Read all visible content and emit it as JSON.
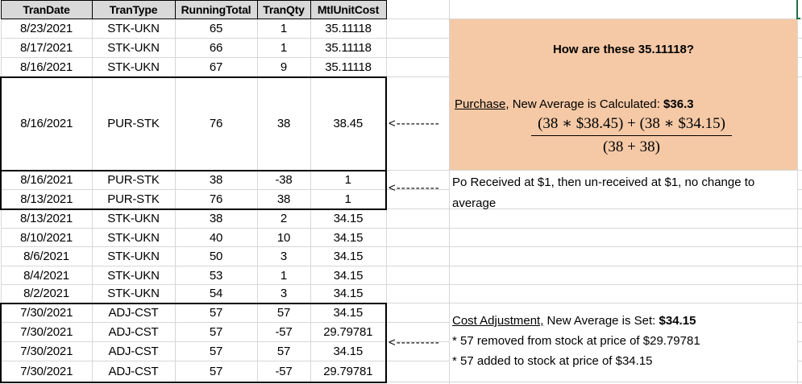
{
  "table": {
    "headers": [
      "TranDate",
      "TranType",
      "RunningTotal",
      "TranQty",
      "MtlUnitCost"
    ],
    "rows": [
      {
        "cells": [
          "8/23/2021",
          "STK-UKN",
          "65",
          "1",
          "35.11118"
        ]
      },
      {
        "cells": [
          "8/17/2021",
          "STK-UKN",
          "66",
          "1",
          "35.11118"
        ]
      },
      {
        "cells": [
          "8/16/2021",
          "STK-UKN",
          "67",
          "9",
          "35.11118"
        ]
      },
      {
        "cells": [
          "8/16/2021",
          "PUR-STK",
          "76",
          "38",
          "38.45"
        ]
      },
      {
        "cells": [
          "8/16/2021",
          "PUR-STK",
          "38",
          "-38",
          "1"
        ]
      },
      {
        "cells": [
          "8/13/2021",
          "PUR-STK",
          "76",
          "38",
          "1"
        ]
      },
      {
        "cells": [
          "8/13/2021",
          "STK-UKN",
          "38",
          "2",
          "34.15"
        ]
      },
      {
        "cells": [
          "8/10/2021",
          "STK-UKN",
          "40",
          "10",
          "34.15"
        ]
      },
      {
        "cells": [
          "8/6/2021",
          "STK-UKN",
          "50",
          "3",
          "34.15"
        ]
      },
      {
        "cells": [
          "8/4/2021",
          "STK-UKN",
          "53",
          "1",
          "34.15"
        ]
      },
      {
        "cells": [
          "8/2/2021",
          "STK-UKN",
          "54",
          "3",
          "34.15"
        ]
      },
      {
        "cells": [
          "7/30/2021",
          "ADJ-CST",
          "57",
          "57",
          "34.15"
        ]
      },
      {
        "cells": [
          "7/30/2021",
          "ADJ-CST",
          "57",
          "-57",
          "29.79781"
        ]
      },
      {
        "cells": [
          "7/30/2021",
          "ADJ-CST",
          "57",
          "57",
          "34.15"
        ]
      },
      {
        "cells": [
          "7/30/2021",
          "ADJ-CST",
          "57",
          "-57",
          "29.79781"
        ]
      }
    ]
  },
  "arrows": {
    "glyph": "<---------"
  },
  "annotations": {
    "question": "How are these 35.11118?",
    "purchase_label": "Purchase,",
    "purchase_text": " New Average is Calculated: ",
    "purchase_value": "$36.3",
    "formula_numerator": "(38 ∗ $38.45) + (38 ∗ $34.15)",
    "formula_denominator": "(38 + 38)",
    "po_note_line1": "Po Received at $1, then un-received at $1, no change to",
    "po_note_line2": "average",
    "cost_label": "Cost Adjustment,",
    "cost_text": " New Average is Set: ",
    "cost_value": "$34.15",
    "cost_bullet1": "* 57 removed from stock at price of $29.79781",
    "cost_bullet2": "* 57 added to stock at price of $34.15"
  },
  "colors": {
    "highlight": "#F5C9A6",
    "header_bg": "#D9D9D9",
    "gridline": "#D7D7D7",
    "selection_green": "#1E7145",
    "border_black": "#000000"
  }
}
